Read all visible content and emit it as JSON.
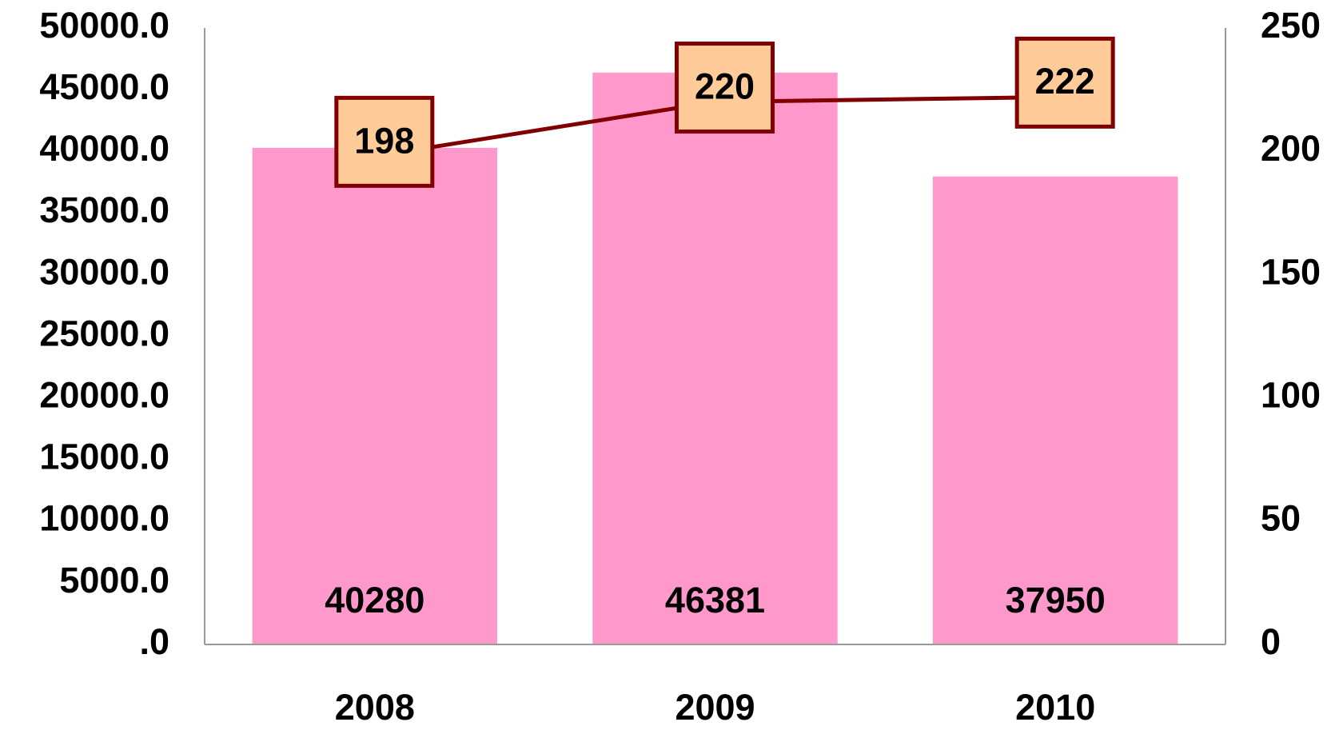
{
  "chart_data": {
    "type": "bar",
    "categories": [
      "2008",
      "2009",
      "2010"
    ],
    "series": [
      {
        "type": "bar",
        "color": "#ff99cc",
        "values": [
          40280,
          46381,
          37950
        ]
      },
      {
        "type": "line",
        "axis": "y2",
        "color": "#800000",
        "label_fill": "#ffcc99",
        "values": [
          198,
          220,
          222
        ]
      }
    ],
    "ylim": [
      0,
      50000
    ],
    "yticks": [
      {
        "value": 0,
        "label": ".0"
      },
      {
        "value": 5000,
        "label": "5000.0"
      },
      {
        "value": 10000,
        "label": "10000.0"
      },
      {
        "value": 15000,
        "label": "15000.0"
      },
      {
        "value": 20000,
        "label": "20000.0"
      },
      {
        "value": 25000,
        "label": "25000.0"
      },
      {
        "value": 30000,
        "label": "30000.0"
      },
      {
        "value": 35000,
        "label": "35000.0"
      },
      {
        "value": 40000,
        "label": "40000.0"
      },
      {
        "value": 45000,
        "label": "45000.0"
      },
      {
        "value": 50000,
        "label": "50000.0"
      }
    ],
    "y2lim": [
      0,
      250
    ],
    "y2ticks": [
      0,
      50,
      100,
      150,
      200,
      250
    ],
    "grid": false
  }
}
